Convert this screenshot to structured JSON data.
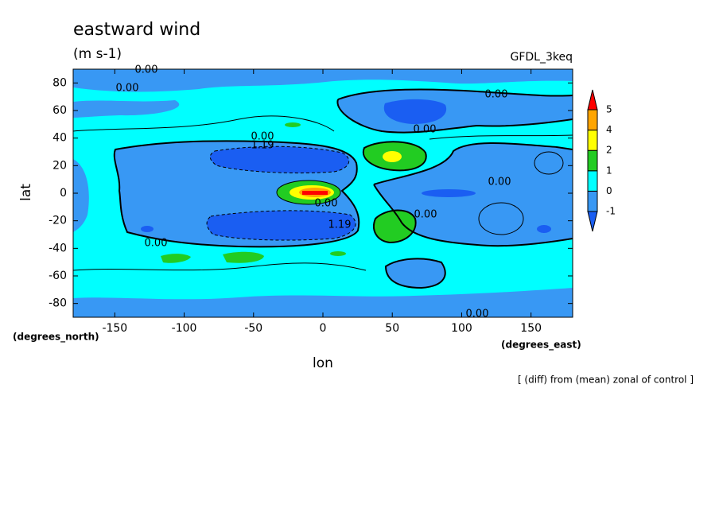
{
  "chart_data": {
    "type": "contour",
    "title": "eastward wind",
    "subtitle": "(m s-1)",
    "dataset": "GFDL_3keq",
    "x_label": "lon",
    "y_label": "lat",
    "x_units": "(degrees_east)",
    "y_units": "(degrees_north)",
    "footnote": "[ (diff) from (mean) zonal of control ]",
    "xlim": [
      -180,
      180
    ],
    "ylim": [
      -90,
      90
    ],
    "xticks": [
      -150,
      -100,
      -50,
      0,
      50,
      100,
      150
    ],
    "yticks": [
      -80,
      -60,
      -40,
      -20,
      0,
      20,
      40,
      60,
      80
    ],
    "colorbar": {
      "levels": [
        -1,
        0,
        1,
        2,
        4,
        5
      ],
      "colors": [
        "#1a5ef2",
        "#3898f4",
        "#00ffff",
        "#22cc22",
        "#ffff00",
        "#ffa500",
        "#ff0000"
      ]
    },
    "contour_labels": [
      "0.00",
      "0.00",
      "0.00",
      "0.00",
      "0.00",
      "1.19",
      "0.00",
      "0.00",
      "0.00",
      "1.19",
      "0.00",
      "0.00"
    ]
  }
}
